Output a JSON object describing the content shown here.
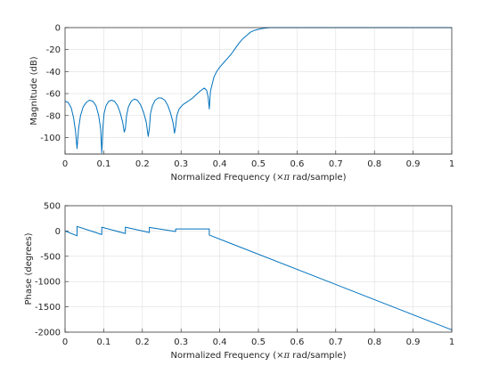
{
  "chart_data": [
    {
      "type": "line",
      "xlabel_parts": [
        "Normalized Frequency  (",
        "×π",
        " rad/sample)"
      ],
      "ylabel": "Magnitude (dB)",
      "xlim": [
        0,
        1
      ],
      "ylim": [
        -115,
        0
      ],
      "xticks": [
        0,
        0.1,
        0.2,
        0.3,
        0.4,
        0.5,
        0.6,
        0.7,
        0.8,
        0.9,
        1
      ],
      "xtick_labels": [
        "0",
        "0.1",
        "0.2",
        "0.3",
        "0.4",
        "0.5",
        "0.6",
        "0.7",
        "0.8",
        "0.9",
        "1"
      ],
      "yticks": [
        0,
        -20,
        -40,
        -60,
        -80,
        -100
      ],
      "ytick_labels": [
        "0",
        "-20",
        "-40",
        "-60",
        "-80",
        "-100"
      ],
      "grid": true,
      "color": "#0072bd",
      "series": [
        {
          "x": [
            0,
            0.008,
            0.016,
            0.022,
            0.027,
            0.031,
            0.035,
            0.04,
            0.047,
            0.055,
            0.063,
            0.072,
            0.08,
            0.087,
            0.092,
            0.095,
            0.098,
            0.101,
            0.106,
            0.113,
            0.12,
            0.128,
            0.136,
            0.143,
            0.149,
            0.153,
            0.156,
            0.159,
            0.164,
            0.171,
            0.179,
            0.187,
            0.195,
            0.203,
            0.21,
            0.215,
            0.218,
            0.221,
            0.226,
            0.233,
            0.241,
            0.249,
            0.258,
            0.266,
            0.273,
            0.279,
            0.283,
            0.286,
            0.289,
            0.295,
            0.305,
            0.318,
            0.33,
            0.342,
            0.352,
            0.36,
            0.366,
            0.37,
            0.373,
            0.376,
            0.38,
            0.385,
            0.392,
            0.4,
            0.41,
            0.42,
            0.43,
            0.44,
            0.45,
            0.46,
            0.47,
            0.48,
            0.49,
            0.5,
            0.51,
            0.52,
            0.53,
            0.535,
            0.54,
            0.6,
            0.7,
            0.8,
            0.9,
            1.0
          ],
          "y": [
            -67,
            -68,
            -73,
            -82,
            -94,
            -110,
            -92,
            -80,
            -72,
            -68,
            -66,
            -67,
            -71,
            -80,
            -92,
            -114,
            -90,
            -78,
            -71,
            -67,
            -66,
            -67,
            -71,
            -78,
            -86,
            -95,
            -92,
            -80,
            -72,
            -67,
            -65,
            -66,
            -70,
            -77,
            -86,
            -99,
            -92,
            -78,
            -71,
            -66,
            -64,
            -64,
            -66,
            -71,
            -78,
            -86,
            -96,
            -90,
            -80,
            -74,
            -70,
            -67,
            -64,
            -60,
            -57,
            -55,
            -57,
            -63,
            -74,
            -58,
            -52,
            -45,
            -40,
            -36,
            -32,
            -28,
            -24,
            -19,
            -14,
            -10,
            -7,
            -4,
            -2.5,
            -1.5,
            -0.8,
            -0.3,
            -0.05,
            0,
            0,
            0,
            0,
            0,
            0,
            0
          ]
        }
      ]
    },
    {
      "type": "line",
      "xlabel_parts": [
        "Normalized Frequency  (",
        "×π",
        " rad/sample)"
      ],
      "ylabel": "Phase (degrees)",
      "xlim": [
        0,
        1
      ],
      "ylim": [
        -2000,
        500
      ],
      "xticks": [
        0,
        0.1,
        0.2,
        0.3,
        0.4,
        0.5,
        0.6,
        0.7,
        0.8,
        0.9,
        1
      ],
      "xtick_labels": [
        "0",
        "0.1",
        "0.2",
        "0.3",
        "0.4",
        "0.5",
        "0.6",
        "0.7",
        "0.8",
        "0.9",
        "1"
      ],
      "yticks": [
        500,
        0,
        -500,
        -1000,
        -1500,
        -2000
      ],
      "ytick_labels": [
        "500",
        "0",
        "-500",
        "-1000",
        "-1500",
        "-2000"
      ],
      "grid": true,
      "color": "#0072bd",
      "series": [
        {
          "x": [
            0,
            0.031,
            0.031,
            0.095,
            0.095,
            0.156,
            0.156,
            0.218,
            0.218,
            0.286,
            0.286,
            0.373,
            0.373,
            1.0
          ],
          "y": [
            0,
            -95,
            90,
            -70,
            75,
            -50,
            75,
            -30,
            70,
            -10,
            40,
            40,
            -80,
            -1955
          ]
        }
      ]
    }
  ]
}
